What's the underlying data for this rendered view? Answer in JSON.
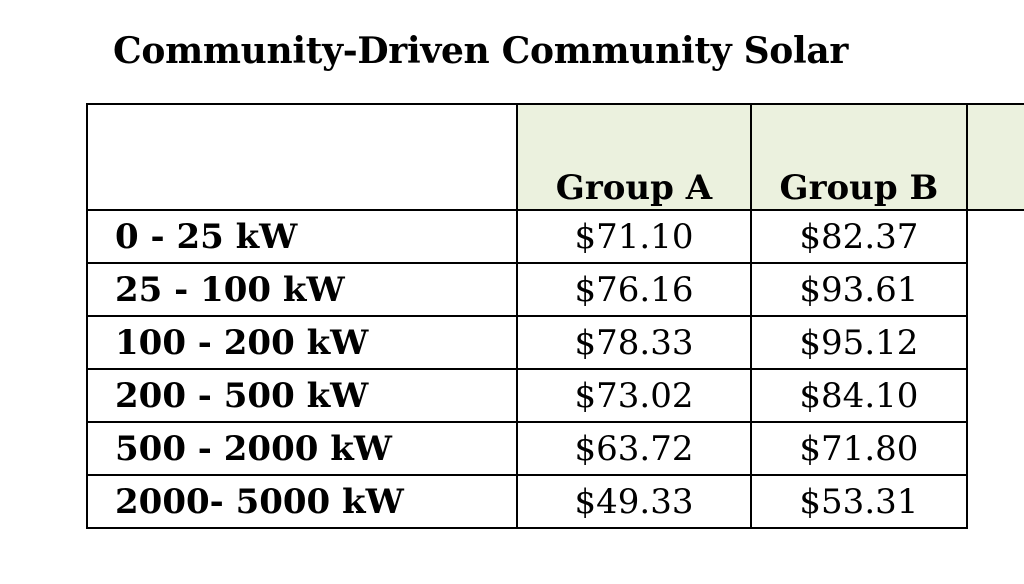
{
  "title": "Community-Driven Community Solar",
  "table": {
    "columns": [
      "",
      "Group A",
      "Group B"
    ],
    "rows": [
      {
        "range": "0 - 25 kW",
        "group_a": "$71.10",
        "group_b": "$82.37"
      },
      {
        "range": "25 - 100 kW",
        "group_a": "$76.16",
        "group_b": "$93.61"
      },
      {
        "range": "100 - 200 kW",
        "group_a": "$78.33",
        "group_b": "$95.12"
      },
      {
        "range": "200 - 500 kW",
        "group_a": "$73.02",
        "group_b": "$84.10"
      },
      {
        "range": "500 - 2000 kW",
        "group_a": "$63.72",
        "group_b": "$71.80"
      },
      {
        "range": "2000- 5000 kW",
        "group_a": "$49.33",
        "group_b": "$53.31"
      }
    ]
  },
  "colors": {
    "header_fill": "#ebf1de",
    "border": "#000000",
    "text": "#000000"
  }
}
